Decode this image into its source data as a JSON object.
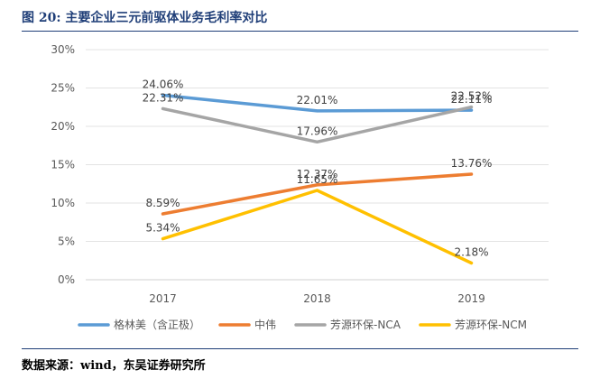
{
  "figure": {
    "title": "图 20:  主要企业三元前驱体业务毛利率对比",
    "source": "数据来源：wind，东吴证券研究所"
  },
  "chart_data": {
    "type": "line",
    "categories": [
      "2017",
      "2018",
      "2019"
    ],
    "ylim": [
      0,
      30
    ],
    "y_ticks": [
      "0%",
      "5%",
      "10%",
      "15%",
      "20%",
      "25%",
      "30%"
    ],
    "grid": true,
    "legend_position": "bottom",
    "series": [
      {
        "name": "格林美（含正极）",
        "color": "#5b9bd5",
        "values": [
          24.06,
          22.01,
          22.11
        ],
        "labels": [
          "24.06%",
          "22.01%",
          "22.11%"
        ]
      },
      {
        "name": "中伟",
        "color": "#ed7d31",
        "values": [
          8.59,
          12.37,
          13.76
        ],
        "labels": [
          "8.59%",
          "12.37%",
          "13.76%"
        ]
      },
      {
        "name": "芳源环保-NCA",
        "color": "#a5a5a5",
        "values": [
          22.31,
          17.96,
          22.52
        ],
        "labels": [
          "22.31%",
          "17.96%",
          "22.52%"
        ]
      },
      {
        "name": "芳源环保-NCM",
        "color": "#ffc000",
        "values": [
          5.34,
          11.65,
          2.18
        ],
        "labels": [
          "5.34%",
          "11.65%",
          "2.18%"
        ]
      }
    ]
  }
}
